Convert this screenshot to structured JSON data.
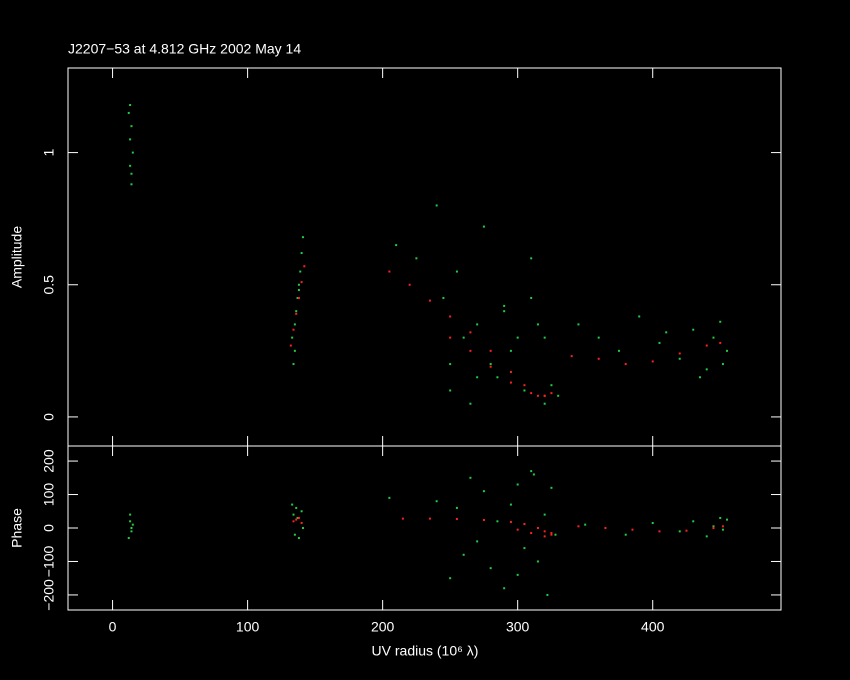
{
  "chart_data": [
    {
      "type": "scatter",
      "title": "J2207−53 at 4.812 GHz 2002 May 14",
      "ylabel": "Amplitude",
      "xlim": [
        -33,
        495
      ],
      "ylim": [
        -0.11,
        1.32
      ],
      "yticks": [
        0,
        0.5,
        1
      ],
      "series": [
        {
          "color": "#22cc44",
          "x": [
            12,
            13,
            13,
            14,
            14,
            15,
            13,
            14,
            133,
            134,
            135,
            136,
            137,
            138,
            139,
            140,
            141,
            135,
            138,
            210,
            225,
            240,
            245,
            250,
            255,
            260,
            265,
            270,
            275,
            280,
            285,
            290,
            295,
            300,
            305,
            310,
            315,
            320,
            325,
            250,
            270,
            290,
            310,
            320,
            330,
            345,
            360,
            375,
            390,
            405,
            420,
            430,
            440,
            445,
            450,
            452,
            455,
            435,
            410
          ],
          "values": [
            1.15,
            1.05,
            0.95,
            1.1,
            0.88,
            1.0,
            1.18,
            0.92,
            0.3,
            0.2,
            0.35,
            0.4,
            0.45,
            0.5,
            0.55,
            0.62,
            0.68,
            0.25,
            0.48,
            0.65,
            0.6,
            0.8,
            0.45,
            0.1,
            0.55,
            0.3,
            0.05,
            0.35,
            0.72,
            0.2,
            0.15,
            0.4,
            0.25,
            0.3,
            0.1,
            0.45,
            0.35,
            0.05,
            0.12,
            0.2,
            0.15,
            0.42,
            0.6,
            0.3,
            0.08,
            0.35,
            0.3,
            0.25,
            0.38,
            0.28,
            0.22,
            0.33,
            0.18,
            0.3,
            0.36,
            0.2,
            0.25,
            0.15,
            0.32
          ]
        },
        {
          "color": "#ff2020",
          "x": [
            132,
            134,
            136,
            138,
            140,
            142,
            205,
            220,
            235,
            250,
            265,
            280,
            295,
            305,
            315,
            320,
            325,
            250,
            265,
            280,
            295,
            310,
            320,
            340,
            360,
            380,
            400,
            420,
            440,
            450
          ],
          "values": [
            0.27,
            0.33,
            0.39,
            0.45,
            0.51,
            0.57,
            0.55,
            0.5,
            0.44,
            0.38,
            0.32,
            0.25,
            0.17,
            0.12,
            0.08,
            0.08,
            0.09,
            0.3,
            0.25,
            0.19,
            0.13,
            0.09,
            0.08,
            0.23,
            0.22,
            0.2,
            0.21,
            0.24,
            0.27,
            0.28
          ]
        }
      ]
    },
    {
      "type": "scatter",
      "ylabel": "Phase",
      "xlabel": "UV radius  (10⁶ λ)",
      "xlim": [
        -33,
        495
      ],
      "xticks": [
        0,
        100,
        200,
        300,
        400
      ],
      "ylim": [
        -245,
        245
      ],
      "yticks": [
        {
          "value": -200,
          "label": "−200"
        },
        {
          "value": -100,
          "label": "−100"
        },
        0,
        100,
        200
      ],
      "series": [
        {
          "color": "#22cc44",
          "x": [
            12,
            13,
            13,
            14,
            14,
            15,
            133,
            134,
            135,
            136,
            137,
            138,
            140,
            141,
            205,
            240,
            250,
            255,
            260,
            265,
            270,
            275,
            280,
            285,
            290,
            295,
            300,
            305,
            310,
            315,
            320,
            322,
            325,
            328,
            300,
            312,
            350,
            380,
            400,
            420,
            430,
            440,
            445,
            450,
            452,
            455
          ],
          "values": [
            -30,
            20,
            40,
            -10,
            0,
            10,
            70,
            40,
            -20,
            60,
            30,
            -30,
            50,
            0,
            90,
            80,
            -150,
            60,
            -80,
            150,
            -40,
            110,
            -120,
            20,
            -180,
            70,
            130,
            -60,
            170,
            -100,
            40,
            -200,
            120,
            -20,
            -140,
            160,
            10,
            -20,
            15,
            -10,
            20,
            -25,
            5,
            30,
            -5,
            25
          ]
        },
        {
          "color": "#ff2020",
          "x": [
            134,
            136,
            138,
            140,
            215,
            235,
            255,
            275,
            295,
            305,
            315,
            320,
            325,
            300,
            310,
            320,
            325,
            345,
            365,
            385,
            405,
            425,
            445,
            452
          ],
          "values": [
            20,
            25,
            30,
            15,
            28,
            28,
            27,
            24,
            18,
            12,
            0,
            -10,
            -15,
            -5,
            -15,
            -25,
            -20,
            5,
            0,
            -5,
            -10,
            -8,
            0,
            5
          ]
        }
      ]
    }
  ]
}
